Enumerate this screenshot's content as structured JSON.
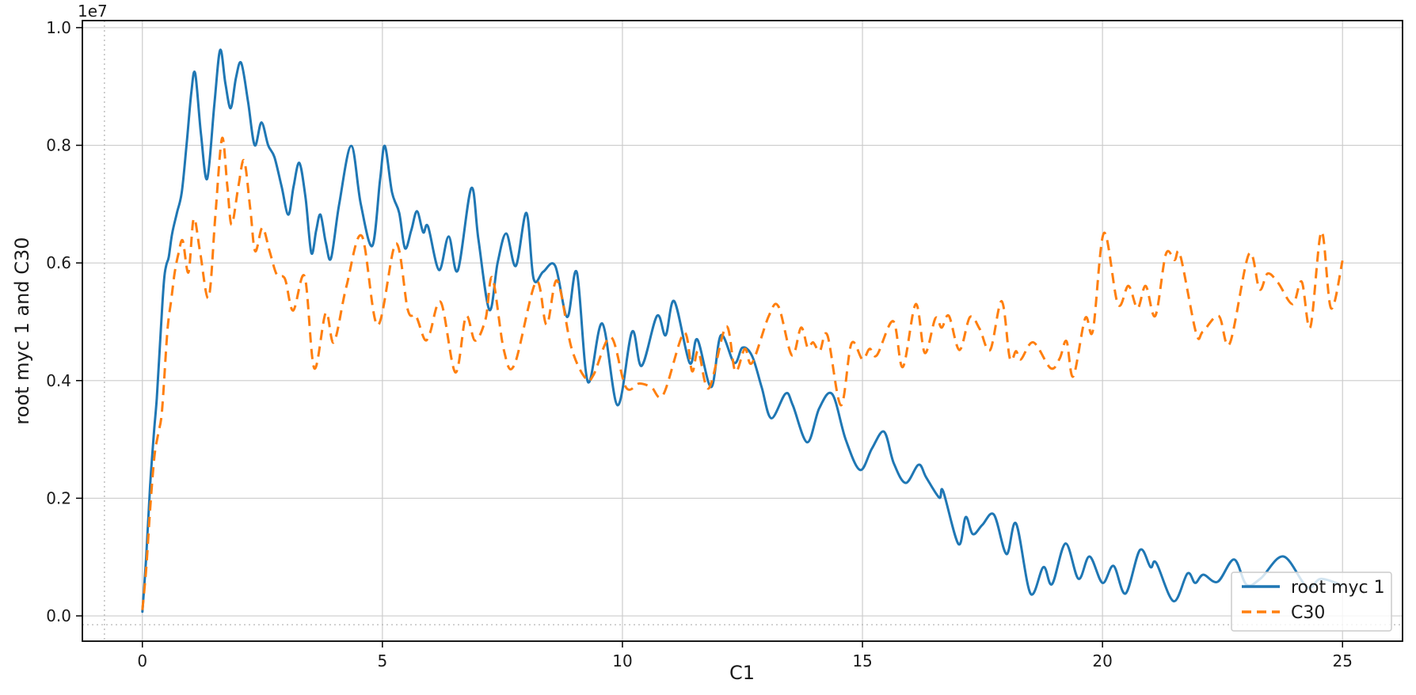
{
  "chart_data": {
    "type": "line",
    "title": "",
    "xlabel": "C1",
    "ylabel": "root myc 1 and C30",
    "y_offset_text": "1e7",
    "y_unit": "1e6",
    "xlim": [
      -1.25,
      26.25
    ],
    "ylim_e6": [
      -0.43,
      10.12
    ],
    "x_ticks": [
      0,
      5,
      10,
      15,
      20,
      25
    ],
    "y_tick_values_e6": [
      0,
      2,
      4,
      6,
      8,
      10
    ],
    "y_tick_labels": [
      "0.0",
      "0.2",
      "0.4",
      "0.6",
      "0.8",
      "1.0"
    ],
    "grid": true,
    "guide_lines": {
      "dotted_vline_x": -0.79,
      "dotted_hline_y_e6": -0.15
    },
    "legend": {
      "location": "lower right",
      "entries": [
        "root myc 1",
        "C30"
      ]
    },
    "colors": {
      "blue": "#1f77b4",
      "orange": "#ff7f0e",
      "grid": "#cccccc",
      "spine": "#000000",
      "text": "#1a1a1a",
      "legend_border": "#cccccc"
    },
    "series": [
      {
        "name": "root myc 1",
        "color": "#1f77b4",
        "line_style": "solid",
        "points": [
          [
            0,
            0.07
          ],
          [
            0.08,
            1.0
          ],
          [
            0.16,
            2.2
          ],
          [
            0.24,
            3.1
          ],
          [
            0.3,
            3.7
          ],
          [
            0.38,
            4.8
          ],
          [
            0.45,
            5.7
          ],
          [
            0.5,
            5.97
          ],
          [
            0.55,
            6.1
          ],
          [
            0.62,
            6.5
          ],
          [
            0.72,
            6.85
          ],
          [
            0.82,
            7.2
          ],
          [
            0.92,
            8.0
          ],
          [
            1.02,
            8.9
          ],
          [
            1.1,
            9.22
          ],
          [
            1.22,
            8.2
          ],
          [
            1.35,
            7.43
          ],
          [
            1.5,
            8.7
          ],
          [
            1.62,
            9.62
          ],
          [
            1.73,
            9.05
          ],
          [
            1.84,
            8.63
          ],
          [
            1.95,
            9.15
          ],
          [
            2.06,
            9.4
          ],
          [
            2.2,
            8.75
          ],
          [
            2.34,
            8.0
          ],
          [
            2.48,
            8.39
          ],
          [
            2.62,
            8.0
          ],
          [
            2.75,
            7.8
          ],
          [
            2.9,
            7.3
          ],
          [
            3.04,
            6.82
          ],
          [
            3.15,
            7.3
          ],
          [
            3.27,
            7.7
          ],
          [
            3.4,
            7.1
          ],
          [
            3.52,
            6.17
          ],
          [
            3.62,
            6.55
          ],
          [
            3.71,
            6.82
          ],
          [
            3.82,
            6.35
          ],
          [
            3.93,
            6.08
          ],
          [
            4.1,
            7.0
          ],
          [
            4.35,
            7.99
          ],
          [
            4.55,
            7.0
          ],
          [
            4.79,
            6.29
          ],
          [
            4.95,
            7.4
          ],
          [
            5.05,
            7.99
          ],
          [
            5.2,
            7.2
          ],
          [
            5.35,
            6.85
          ],
          [
            5.47,
            6.25
          ],
          [
            5.6,
            6.55
          ],
          [
            5.72,
            6.88
          ],
          [
            5.85,
            6.52
          ],
          [
            5.95,
            6.62
          ],
          [
            6.18,
            5.88
          ],
          [
            6.38,
            6.45
          ],
          [
            6.57,
            5.87
          ],
          [
            6.85,
            7.27
          ],
          [
            7.0,
            6.4
          ],
          [
            7.23,
            5.2
          ],
          [
            7.4,
            6.0
          ],
          [
            7.58,
            6.5
          ],
          [
            7.78,
            5.95
          ],
          [
            8.0,
            6.85
          ],
          [
            8.15,
            5.73
          ],
          [
            8.35,
            5.85
          ],
          [
            8.6,
            5.95
          ],
          [
            8.85,
            5.08
          ],
          [
            9.05,
            5.84
          ],
          [
            9.28,
            3.98
          ],
          [
            9.58,
            4.97
          ],
          [
            9.9,
            3.58
          ],
          [
            10.2,
            4.83
          ],
          [
            10.4,
            4.25
          ],
          [
            10.72,
            5.1
          ],
          [
            10.9,
            4.77
          ],
          [
            11.08,
            5.35
          ],
          [
            11.4,
            4.3
          ],
          [
            11.56,
            4.7
          ],
          [
            11.85,
            3.89
          ],
          [
            12.05,
            4.77
          ],
          [
            12.33,
            4.3
          ],
          [
            12.5,
            4.56
          ],
          [
            12.7,
            4.42
          ],
          [
            12.9,
            3.89
          ],
          [
            13.1,
            3.36
          ],
          [
            13.4,
            3.78
          ],
          [
            13.55,
            3.58
          ],
          [
            13.85,
            2.95
          ],
          [
            14.1,
            3.53
          ],
          [
            14.37,
            3.77
          ],
          [
            14.65,
            3.0
          ],
          [
            14.95,
            2.48
          ],
          [
            15.2,
            2.85
          ],
          [
            15.45,
            3.13
          ],
          [
            15.65,
            2.6
          ],
          [
            15.9,
            2.26
          ],
          [
            16.17,
            2.57
          ],
          [
            16.33,
            2.35
          ],
          [
            16.6,
            2.01
          ],
          [
            16.68,
            2.12
          ],
          [
            17.0,
            1.22
          ],
          [
            17.15,
            1.68
          ],
          [
            17.3,
            1.39
          ],
          [
            17.5,
            1.55
          ],
          [
            17.74,
            1.72
          ],
          [
            18.0,
            1.05
          ],
          [
            18.2,
            1.57
          ],
          [
            18.5,
            0.38
          ],
          [
            18.77,
            0.83
          ],
          [
            18.95,
            0.54
          ],
          [
            19.23,
            1.23
          ],
          [
            19.5,
            0.63
          ],
          [
            19.73,
            1.01
          ],
          [
            20.0,
            0.56
          ],
          [
            20.23,
            0.85
          ],
          [
            20.48,
            0.38
          ],
          [
            20.78,
            1.12
          ],
          [
            21.0,
            0.83
          ],
          [
            21.12,
            0.9
          ],
          [
            21.48,
            0.25
          ],
          [
            21.77,
            0.72
          ],
          [
            21.93,
            0.56
          ],
          [
            22.1,
            0.7
          ],
          [
            22.4,
            0.58
          ],
          [
            22.74,
            0.96
          ],
          [
            23.0,
            0.53
          ],
          [
            23.3,
            0.64
          ],
          [
            23.77,
            1.01
          ],
          [
            24.26,
            0.49
          ],
          [
            24.55,
            0.63
          ],
          [
            25.0,
            0.52
          ]
        ]
      },
      {
        "name": "C30",
        "color": "#ff7f0e",
        "line_style": "dashed",
        "points": [
          [
            0,
            0.1
          ],
          [
            0.08,
            0.8
          ],
          [
            0.16,
            1.8
          ],
          [
            0.25,
            2.7
          ],
          [
            0.33,
            3.1
          ],
          [
            0.41,
            3.49
          ],
          [
            0.52,
            4.83
          ],
          [
            0.6,
            5.36
          ],
          [
            0.67,
            5.82
          ],
          [
            0.75,
            6.15
          ],
          [
            0.84,
            6.38
          ],
          [
            0.96,
            5.84
          ],
          [
            1.07,
            6.75
          ],
          [
            1.2,
            6.2
          ],
          [
            1.38,
            5.41
          ],
          [
            1.52,
            6.8
          ],
          [
            1.66,
            8.12
          ],
          [
            1.77,
            7.3
          ],
          [
            1.86,
            6.65
          ],
          [
            2.0,
            7.3
          ],
          [
            2.12,
            7.74
          ],
          [
            2.25,
            6.9
          ],
          [
            2.35,
            6.2
          ],
          [
            2.5,
            6.6
          ],
          [
            2.65,
            6.2
          ],
          [
            2.8,
            5.8
          ],
          [
            2.97,
            5.73
          ],
          [
            3.14,
            5.19
          ],
          [
            3.38,
            5.77
          ],
          [
            3.58,
            4.21
          ],
          [
            3.82,
            5.15
          ],
          [
            3.99,
            4.65
          ],
          [
            4.25,
            5.6
          ],
          [
            4.57,
            6.46
          ],
          [
            4.9,
            4.94
          ],
          [
            5.28,
            6.33
          ],
          [
            5.53,
            5.2
          ],
          [
            5.7,
            5.1
          ],
          [
            5.88,
            4.7
          ],
          [
            5.99,
            4.81
          ],
          [
            6.22,
            5.33
          ],
          [
            6.52,
            4.14
          ],
          [
            6.74,
            5.09
          ],
          [
            6.93,
            4.68
          ],
          [
            7.15,
            5.05
          ],
          [
            7.29,
            5.75
          ],
          [
            7.53,
            4.52
          ],
          [
            7.75,
            4.27
          ],
          [
            8.2,
            5.68
          ],
          [
            8.42,
            4.95
          ],
          [
            8.64,
            5.7
          ],
          [
            8.94,
            4.55
          ],
          [
            9.24,
            4.03
          ],
          [
            9.4,
            4.1
          ],
          [
            9.76,
            4.74
          ],
          [
            10.07,
            3.89
          ],
          [
            10.35,
            3.95
          ],
          [
            10.6,
            3.89
          ],
          [
            10.85,
            3.76
          ],
          [
            11.28,
            4.81
          ],
          [
            11.45,
            4.16
          ],
          [
            11.58,
            4.5
          ],
          [
            11.8,
            3.87
          ],
          [
            12.16,
            4.92
          ],
          [
            12.35,
            4.16
          ],
          [
            12.55,
            4.54
          ],
          [
            12.7,
            4.3
          ],
          [
            13.05,
            5.1
          ],
          [
            13.25,
            5.26
          ],
          [
            13.53,
            4.43
          ],
          [
            13.72,
            4.9
          ],
          [
            13.86,
            4.56
          ],
          [
            13.97,
            4.65
          ],
          [
            14.11,
            4.5
          ],
          [
            14.27,
            4.77
          ],
          [
            14.55,
            3.58
          ],
          [
            14.77,
            4.63
          ],
          [
            15.0,
            4.36
          ],
          [
            15.15,
            4.54
          ],
          [
            15.3,
            4.43
          ],
          [
            15.64,
            5.01
          ],
          [
            15.84,
            4.23
          ],
          [
            16.11,
            5.3
          ],
          [
            16.3,
            4.47
          ],
          [
            16.52,
            5.06
          ],
          [
            16.65,
            4.9
          ],
          [
            16.8,
            5.1
          ],
          [
            17.02,
            4.52
          ],
          [
            17.24,
            5.08
          ],
          [
            17.44,
            4.88
          ],
          [
            17.66,
            4.52
          ],
          [
            17.9,
            5.35
          ],
          [
            18.07,
            4.38
          ],
          [
            18.2,
            4.5
          ],
          [
            18.3,
            4.36
          ],
          [
            18.56,
            4.65
          ],
          [
            18.92,
            4.21
          ],
          [
            19.11,
            4.38
          ],
          [
            19.25,
            4.67
          ],
          [
            19.39,
            4.07
          ],
          [
            19.64,
            5.06
          ],
          [
            19.8,
            4.85
          ],
          [
            20.03,
            6.51
          ],
          [
            20.32,
            5.3
          ],
          [
            20.54,
            5.61
          ],
          [
            20.73,
            5.23
          ],
          [
            20.9,
            5.61
          ],
          [
            21.1,
            5.1
          ],
          [
            21.32,
            6.15
          ],
          [
            21.5,
            6.05
          ],
          [
            21.62,
            6.13
          ],
          [
            21.95,
            4.81
          ],
          [
            22.09,
            4.83
          ],
          [
            22.42,
            5.1
          ],
          [
            22.65,
            4.63
          ],
          [
            23.05,
            6.15
          ],
          [
            23.27,
            5.55
          ],
          [
            23.44,
            5.82
          ],
          [
            23.66,
            5.66
          ],
          [
            23.96,
            5.3
          ],
          [
            24.15,
            5.68
          ],
          [
            24.33,
            4.91
          ],
          [
            24.56,
            6.53
          ],
          [
            24.76,
            5.23
          ],
          [
            25.0,
            6.04
          ]
        ]
      }
    ]
  }
}
